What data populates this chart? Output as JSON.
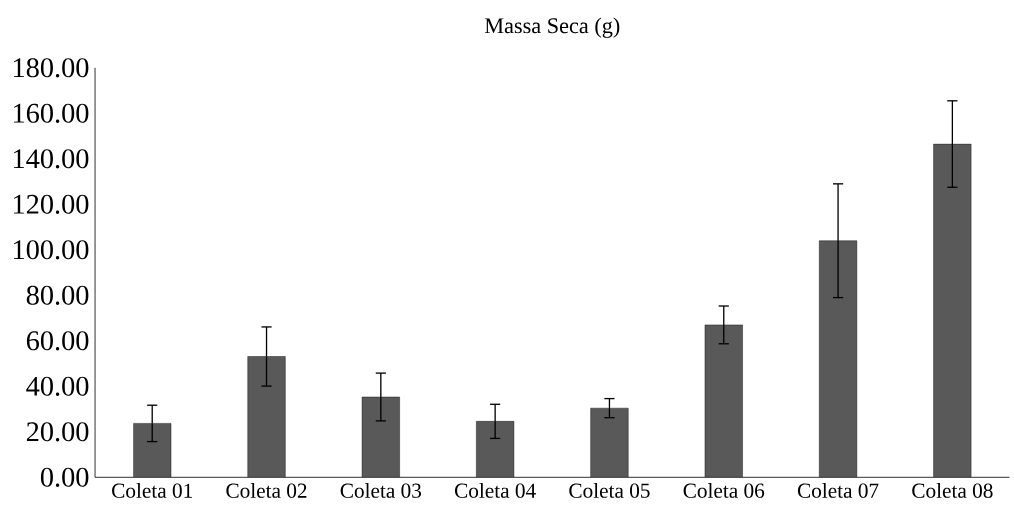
{
  "chart_data": {
    "type": "bar",
    "title": "Massa Seca (g)",
    "categories": [
      "Coleta 01",
      "Coleta 02",
      "Coleta 03",
      "Coleta 04",
      "Coleta 05",
      "Coleta 06",
      "Coleta 07",
      "Coleta 08"
    ],
    "values": [
      23.7,
      53.1,
      35.3,
      24.6,
      30.4,
      67.0,
      104.0,
      146.5
    ],
    "errors": [
      8.0,
      13.0,
      10.5,
      7.5,
      4.2,
      8.3,
      25.0,
      19.0
    ],
    "color": "#595959",
    "ylim": [
      0,
      180
    ],
    "yticks": [
      {
        "value": 0,
        "label": "0.00"
      },
      {
        "value": 20,
        "label": "20.00"
      },
      {
        "value": 40,
        "label": "40.00"
      },
      {
        "value": 60,
        "label": "60.00"
      },
      {
        "value": 80,
        "label": "80.00"
      },
      {
        "value": 100,
        "label": "100.00"
      },
      {
        "value": 120,
        "label": "120.00"
      },
      {
        "value": 140,
        "label": "140.00"
      },
      {
        "value": 160,
        "label": "160.00"
      },
      {
        "value": 180,
        "label": "180.00"
      }
    ],
    "grid": false
  }
}
